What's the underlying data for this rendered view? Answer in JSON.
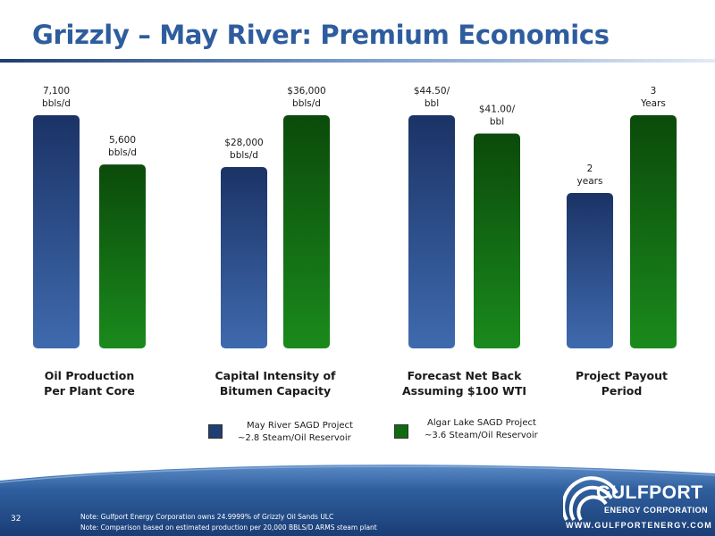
{
  "slide": {
    "title": "Grizzly – May River: Premium Economics",
    "page_number": "32",
    "notes": [
      "Note: Gulfport Energy Corporation owns 24.9999% of Grizzly Oil Sands ULC",
      "Note: Comparison based on estimated production per 20,000 BBLS/D ARMS steam plant"
    ],
    "logo": {
      "name": "GULFPORT",
      "subtitle": "ENERGY CORPORATION",
      "url": "WWW.GULFPORTENERGY.COM"
    }
  },
  "legend": [
    {
      "line1": "May River SAGD Project",
      "line2": "~2.8 Steam/Oil Reservoir",
      "color": "#1e3e74"
    },
    {
      "line1": "Algar Lake SAGD Project",
      "line2": "~3.6 Steam/Oil Reservoir",
      "color": "#0f6a12"
    }
  ],
  "chart_data": {
    "type": "bar",
    "title": "",
    "categories": [
      [
        "Oil Production",
        "Per Plant Core"
      ],
      [
        "Capital Intensity of",
        "Bitumen Capacity"
      ],
      [
        "Forecast Net Back",
        "Assuming $100 WTI"
      ],
      [
        "Project Payout",
        "Period"
      ]
    ],
    "series": [
      {
        "name": "May River SAGD Project",
        "values": [
          7100,
          28000,
          44.5,
          2
        ],
        "labels": [
          [
            "7,100",
            "bbls/d"
          ],
          [
            "$28,000",
            "bbls/d"
          ],
          [
            "$44.50/",
            "bbl"
          ],
          [
            "2",
            "years"
          ]
        ]
      },
      {
        "name": "Algar Lake SAGD Project",
        "values": [
          5600,
          36000,
          41.0,
          3
        ],
        "labels": [
          [
            "5,600",
            "bbls/d"
          ],
          [
            "$36,000",
            "bbls/d"
          ],
          [
            "$41.00/",
            "bbl"
          ],
          [
            "3",
            "Years"
          ]
        ]
      }
    ],
    "panel_max": [
      7100,
      36000,
      44.5,
      3
    ],
    "colors": {
      "may_top": "#1b3366",
      "may_bottom": "#3f6aae",
      "algar_top": "#0b4a0b",
      "algar_bottom": "#1a8a1c"
    }
  }
}
